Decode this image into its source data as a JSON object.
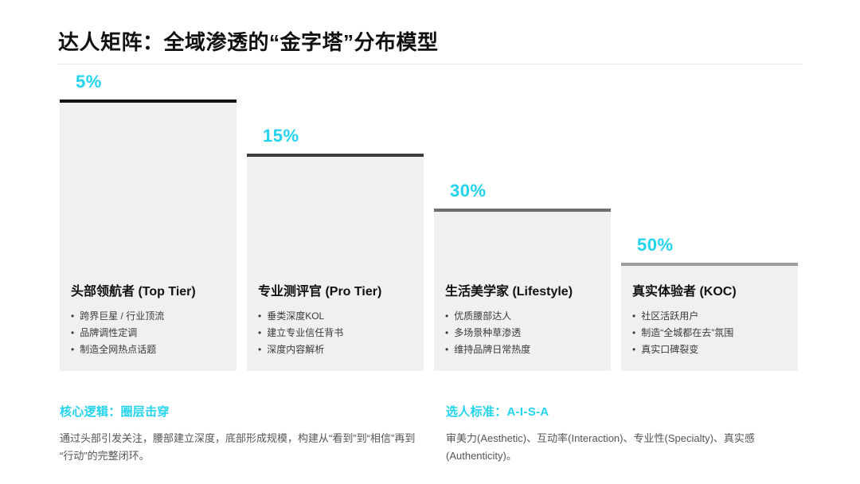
{
  "title": "达人矩阵：全域渗透的“金字塔”分布模型",
  "colors": {
    "accent": "#22d3ee",
    "box_bg": "#f0f0f0",
    "tier_caps": [
      "#141414",
      "#3d3d3d",
      "#6e6e6e",
      "#9c9c9c"
    ]
  },
  "bullet_char": "•",
  "tiers": [
    {
      "percent": "5%",
      "name": "头部领航者 (Top Tier)",
      "cap_color": "#141414",
      "bullets": [
        "跨界巨星 / 行业顶流",
        "品牌调性定调",
        "制造全网热点话题"
      ]
    },
    {
      "percent": "15%",
      "name": "专业测评官 (Pro Tier)",
      "cap_color": "#3d3d3d",
      "bullets": [
        "垂类深度KOL",
        "建立专业信任背书",
        "深度内容解析"
      ]
    },
    {
      "percent": "30%",
      "name": "生活美学家 (Lifestyle)",
      "cap_color": "#6e6e6e",
      "bullets": [
        "优质腰部达人",
        "多场景种草渗透",
        "维持品牌日常热度"
      ]
    },
    {
      "percent": "50%",
      "name": "真实体验者 (KOC)",
      "cap_color": "#9c9c9c",
      "bullets": [
        "社区活跃用户",
        "制造“全城都在去”氛围",
        "真实口碑裂变"
      ]
    }
  ],
  "footnotes": [
    {
      "heading": "核心逻辑：圈层击穿",
      "body": "通过头部引发关注，腰部建立深度，底部形成规模，构建从“看到”到“相信”再到“行动”的完整闭环。"
    },
    {
      "heading": "选人标准：A-I-S-A",
      "body": "审美力(Aesthetic)、互动率(Interaction)、专业性(Specialty)、真实感(Authenticity)。"
    }
  ]
}
